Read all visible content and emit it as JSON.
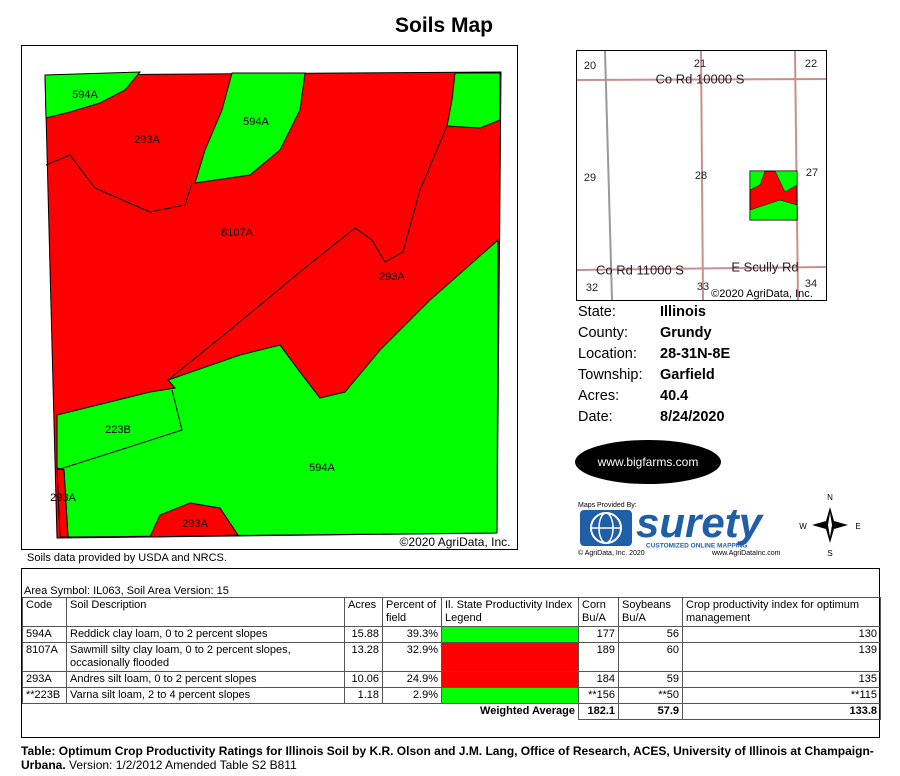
{
  "title": "Soils Map",
  "map": {
    "labels": [
      "594A",
      "293A",
      "594A",
      "8107A",
      "293A",
      "223B",
      "594A",
      "293A",
      "293A"
    ],
    "copyright": "©2020 AgriData, Inc.",
    "source": "Soils data provided by USDA and NRCS."
  },
  "locator": {
    "sections": [
      "20",
      "21",
      "22",
      "29",
      "28",
      "27",
      "32",
      "33",
      "34"
    ],
    "roads": [
      "Co Rd 10000 S",
      "Co Rd 11000 S",
      "E Scully Rd"
    ],
    "copyright": "©2020 AgriData, Inc."
  },
  "info": [
    {
      "label": "State:",
      "value": "Illinois"
    },
    {
      "label": "County:",
      "value": "Grundy"
    },
    {
      "label": "Location:",
      "value": "28-31N-8E"
    },
    {
      "label": "Township:",
      "value": "Garfield"
    },
    {
      "label": "Acres:",
      "value": "40.4"
    },
    {
      "label": "Date:",
      "value": "8/24/2020"
    }
  ],
  "logos": {
    "bigfarms": "www.bigfarms.com",
    "maps_provided_by": "Maps Provided By:",
    "surety": "surety",
    "surety_tagline": "CUSTOMIZED ONLINE MAPPING",
    "surety_copyright": "© AgriData, Inc. 2020",
    "surety_url": "www.AgriDataInc.com"
  },
  "compass": [
    "N",
    "W",
    "E",
    "S"
  ],
  "table": {
    "area_symbol": "Area Symbol: IL063, Soil Area Version: 15",
    "headers": [
      "Code",
      "Soil Description",
      "Acres",
      "Percent of field",
      "Il. State Productivity Index Legend",
      "Corn Bu/A",
      "Soybeans Bu/A",
      "Crop productivity index for optimum management"
    ],
    "rows": [
      [
        "594A",
        "Reddick clay loam, 0 to 2 percent slopes",
        "15.88",
        "39.3%",
        "177",
        "56",
        "130"
      ],
      [
        "8107A",
        "Sawmill silty clay loam, 0 to 2 percent slopes, occasionally flooded",
        "13.28",
        "32.9%",
        "189",
        "60",
        "139"
      ],
      [
        "293A",
        "Andres silt loam, 0 to 2 percent slopes",
        "10.06",
        "24.9%",
        "184",
        "59",
        "135"
      ],
      [
        "**223B",
        "Varna silt loam, 2 to 4 percent slopes",
        "1.18",
        "2.9%",
        "**156",
        "**50",
        "**115"
      ]
    ],
    "legend_colors": [
      "#00ff00",
      "#ff0000",
      "#ff0000",
      "#00ff00"
    ],
    "weighted_average": {
      "label": "Weighted Average",
      "values": [
        "182.1",
        "57.9",
        "133.8"
      ]
    }
  },
  "footer": {
    "citation": "Table: Optimum Crop Productivity Ratings for Illinois Soil by K.R. Olson and J.M. Lang, Office of Research, ACES, University of Illinois at Champaign-Urbana.",
    "version": "Version: 1/2/2012 Amended Table S2 B811"
  }
}
